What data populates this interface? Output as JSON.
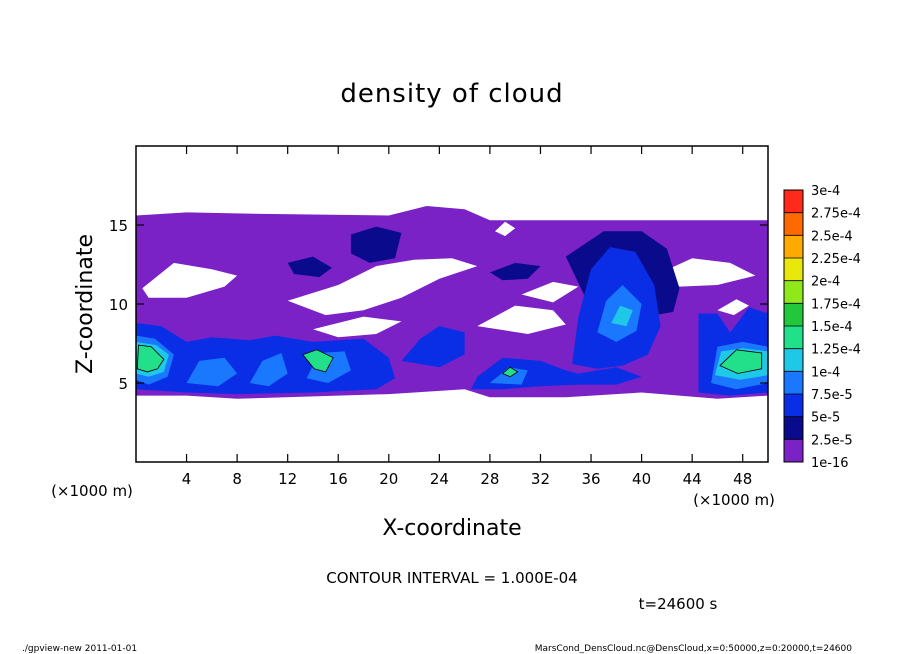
{
  "chart_data": {
    "type": "heatmap",
    "title": "density of cloud",
    "xlabel": "X-coordinate",
    "ylabel": "Z-coordinate",
    "x_unit_label": "(×1000 m)",
    "y_unit_label": "(×1000 m)",
    "xlim": [
      0,
      50
    ],
    "ylim": [
      0,
      20
    ],
    "x_ticks": [
      4,
      8,
      12,
      16,
      20,
      24,
      28,
      32,
      36,
      40,
      44,
      48
    ],
    "y_ticks": [
      5,
      10,
      15
    ],
    "contour_interval_text": "CONTOUR INTERVAL = 1.000E-04",
    "time_text": "t=24600 s",
    "colorbar": {
      "levels": [
        "1e-16",
        "2.5e-5",
        "5e-5",
        "7.5e-5",
        "1e-4",
        "1.25e-4",
        "1.5e-4",
        "1.75e-4",
        "2e-4",
        "2.25e-4",
        "2.5e-4",
        "2.75e-4",
        "3e-4"
      ],
      "colors": [
        "#7a22c6",
        "#0a0a8c",
        "#0a2ee6",
        "#1a78ff",
        "#20c8e8",
        "#22e08a",
        "#22c83a",
        "#8ee81a",
        "#e8e80a",
        "#ffaa00",
        "#ff6a00",
        "#ff2a1a",
        "#ff8a8a"
      ]
    },
    "grid": false,
    "regions": [
      {
        "name": "background-cloud",
        "level": "1e-16",
        "polygon": [
          [
            0,
            4.2
          ],
          [
            0,
            15.6
          ],
          [
            4,
            15.8
          ],
          [
            10,
            15.7
          ],
          [
            20,
            15.6
          ],
          [
            23,
            16.2
          ],
          [
            26,
            16
          ],
          [
            28,
            15.3
          ],
          [
            50,
            15.3
          ],
          [
            50,
            4.2
          ],
          [
            46,
            4
          ],
          [
            40,
            4.4
          ],
          [
            34,
            4.1
          ],
          [
            28,
            4.1
          ],
          [
            26,
            4.6
          ],
          [
            20,
            4.3
          ],
          [
            8,
            4
          ],
          [
            4,
            4.2
          ]
        ]
      },
      {
        "name": "clear-gap-1",
        "level": "none",
        "polygon": [
          [
            0.5,
            11
          ],
          [
            3,
            12.6
          ],
          [
            6,
            12.2
          ],
          [
            8,
            11.8
          ],
          [
            7,
            11.1
          ],
          [
            4,
            10.4
          ],
          [
            1,
            10.4
          ]
        ]
      },
      {
        "name": "clear-gap-2",
        "level": "none",
        "polygon": [
          [
            12,
            10.2
          ],
          [
            16,
            11.2
          ],
          [
            19,
            12.4
          ],
          [
            22,
            12.8
          ],
          [
            25,
            12.9
          ],
          [
            27,
            12.4
          ],
          [
            24,
            11.6
          ],
          [
            21,
            10.4
          ],
          [
            18,
            9.6
          ],
          [
            15,
            9.3
          ]
        ]
      },
      {
        "name": "clear-gap-3",
        "level": "none",
        "polygon": [
          [
            14,
            8.4
          ],
          [
            18,
            9.2
          ],
          [
            21,
            8.9
          ],
          [
            19,
            8.1
          ],
          [
            16,
            7.9
          ]
        ]
      },
      {
        "name": "clear-gap-4",
        "level": "none",
        "polygon": [
          [
            27,
            8.6
          ],
          [
            30,
            9.9
          ],
          [
            33,
            9.6
          ],
          [
            34,
            8.7
          ],
          [
            31,
            8.1
          ]
        ]
      },
      {
        "name": "clear-gap-5",
        "level": "none",
        "polygon": [
          [
            30.5,
            10.6
          ],
          [
            33,
            11.4
          ],
          [
            35,
            11.1
          ],
          [
            33,
            10.1
          ]
        ]
      },
      {
        "name": "clear-gap-6",
        "level": "none",
        "polygon": [
          [
            41,
            11.8
          ],
          [
            44,
            12.9
          ],
          [
            47,
            12.6
          ],
          [
            49,
            11.8
          ],
          [
            46,
            11.2
          ],
          [
            43,
            11.1
          ]
        ]
      },
      {
        "name": "clear-gap-7",
        "level": "none",
        "polygon": [
          [
            46,
            9.6
          ],
          [
            47.5,
            10.3
          ],
          [
            48.5,
            9.9
          ],
          [
            47.3,
            9.3
          ]
        ]
      },
      {
        "name": "clear-hole-top",
        "level": "none",
        "polygon": [
          [
            28.4,
            14.6
          ],
          [
            29.2,
            15.2
          ],
          [
            30,
            14.8
          ],
          [
            29.2,
            14.3
          ]
        ]
      },
      {
        "name": "dark-cloud-1",
        "level": "2.5e-5",
        "polygon": [
          [
            17,
            14.4
          ],
          [
            19,
            14.9
          ],
          [
            21,
            14.5
          ],
          [
            20.5,
            12.9
          ],
          [
            18.5,
            12.6
          ],
          [
            17,
            13.2
          ]
        ]
      },
      {
        "name": "dark-cloud-2",
        "level": "2.5e-5",
        "polygon": [
          [
            12,
            12.6
          ],
          [
            14,
            13
          ],
          [
            15.5,
            12.3
          ],
          [
            14.5,
            11.7
          ],
          [
            12.5,
            11.9
          ]
        ]
      },
      {
        "name": "dark-cloud-3",
        "level": "2.5e-5",
        "polygon": [
          [
            28,
            12
          ],
          [
            30,
            12.6
          ],
          [
            32,
            12.4
          ],
          [
            31,
            11.6
          ],
          [
            29,
            11.5
          ]
        ]
      },
      {
        "name": "dark-cloud-4",
        "level": "2.5e-5",
        "polygon": [
          [
            34,
            13
          ],
          [
            37,
            14.6
          ],
          [
            40,
            14.6
          ],
          [
            42,
            13.5
          ],
          [
            43,
            11
          ],
          [
            42.5,
            9.5
          ],
          [
            39,
            9
          ],
          [
            35.5,
            10.5
          ]
        ]
      },
      {
        "name": "low-band-1",
        "level": "5e-5",
        "polygon": [
          [
            0,
            4.6
          ],
          [
            0,
            8.8
          ],
          [
            2,
            8.6
          ],
          [
            4,
            7.6
          ],
          [
            6,
            7.9
          ],
          [
            9,
            7.7
          ],
          [
            11,
            8
          ],
          [
            14,
            7.6
          ],
          [
            18,
            7.8
          ],
          [
            20,
            6.6
          ],
          [
            20.5,
            5.3
          ],
          [
            19,
            4.6
          ],
          [
            14,
            4.4
          ],
          [
            8,
            4.3
          ],
          [
            4,
            4.4
          ]
        ]
      },
      {
        "name": "low-band-2",
        "level": "5e-5",
        "polygon": [
          [
            26.5,
            4.6
          ],
          [
            27,
            5.4
          ],
          [
            29,
            6.6
          ],
          [
            32,
            6.4
          ],
          [
            34,
            5.8
          ],
          [
            35,
            5.6
          ],
          [
            38,
            6
          ],
          [
            40,
            5.4
          ],
          [
            38,
            4.9
          ],
          [
            35,
            4.9
          ],
          [
            32,
            4.8
          ],
          [
            29,
            4.6
          ]
        ]
      },
      {
        "name": "right-column",
        "level": "5e-5",
        "polygon": [
          [
            34.5,
            6.2
          ],
          [
            35,
            9.2
          ],
          [
            36,
            12.2
          ],
          [
            37.5,
            13.6
          ],
          [
            39.5,
            13.3
          ],
          [
            41,
            11.2
          ],
          [
            41.5,
            8.6
          ],
          [
            40.5,
            6.8
          ],
          [
            38.5,
            6.1
          ],
          [
            36.5,
            5.9
          ]
        ]
      },
      {
        "name": "right-edge",
        "level": "5e-5",
        "polygon": [
          [
            44.5,
            4.4
          ],
          [
            44.5,
            9.4
          ],
          [
            46,
            9.4
          ],
          [
            47,
            8.2
          ],
          [
            48.5,
            9.8
          ],
          [
            50,
            9.4
          ],
          [
            50,
            4.4
          ],
          [
            47,
            4.2
          ]
        ]
      },
      {
        "name": "mid-patch",
        "level": "5e-5",
        "polygon": [
          [
            21,
            6.4
          ],
          [
            22.5,
            7.8
          ],
          [
            24,
            8.6
          ],
          [
            26,
            8.2
          ],
          [
            26,
            6.8
          ],
          [
            24,
            6
          ]
        ]
      },
      {
        "name": "light-1",
        "level": "7.5e-5",
        "polygon": [
          [
            0,
            5.2
          ],
          [
            0,
            8
          ],
          [
            1.5,
            7.8
          ],
          [
            3,
            6.8
          ],
          [
            2.5,
            5.4
          ],
          [
            1,
            4.9
          ]
        ]
      },
      {
        "name": "light-2",
        "level": "7.5e-5",
        "polygon": [
          [
            4,
            5
          ],
          [
            5,
            6.4
          ],
          [
            7,
            6.6
          ],
          [
            8,
            5.6
          ],
          [
            6.5,
            4.8
          ]
        ]
      },
      {
        "name": "light-3",
        "level": "7.5e-5",
        "polygon": [
          [
            9,
            5
          ],
          [
            10,
            6.4
          ],
          [
            11.5,
            6.9
          ],
          [
            12,
            5.6
          ],
          [
            10.5,
            4.8
          ]
        ]
      },
      {
        "name": "light-4",
        "level": "7.5e-5",
        "polygon": [
          [
            13.5,
            5.3
          ],
          [
            14.5,
            6.9
          ],
          [
            16.5,
            7
          ],
          [
            17,
            5.8
          ],
          [
            15.2,
            5
          ]
        ]
      },
      {
        "name": "light-5",
        "level": "7.5e-5",
        "polygon": [
          [
            28,
            5
          ],
          [
            29.5,
            6
          ],
          [
            31,
            5.8
          ],
          [
            30.5,
            4.9
          ]
        ]
      },
      {
        "name": "light-6",
        "level": "7.5e-5",
        "polygon": [
          [
            36.5,
            8.2
          ],
          [
            37.2,
            10.2
          ],
          [
            38.5,
            11.2
          ],
          [
            40,
            10
          ],
          [
            39.6,
            8.3
          ],
          [
            38,
            7.6
          ]
        ]
      },
      {
        "name": "light-7",
        "level": "7.5e-5",
        "polygon": [
          [
            45.5,
            5
          ],
          [
            46,
            7.3
          ],
          [
            48,
            7.6
          ],
          [
            50,
            7.3
          ],
          [
            50,
            5
          ],
          [
            47.5,
            4.6
          ]
        ]
      },
      {
        "name": "cyan-1",
        "level": "1e-4",
        "polygon": [
          [
            37.6,
            8.8
          ],
          [
            38.3,
            9.9
          ],
          [
            39.3,
            9.6
          ],
          [
            38.8,
            8.6
          ]
        ]
      },
      {
        "name": "cyan-2",
        "level": "1e-4",
        "polygon": [
          [
            0,
            5.6
          ],
          [
            0,
            7.6
          ],
          [
            1.6,
            7.4
          ],
          [
            2.6,
            6.8
          ],
          [
            2.2,
            5.7
          ],
          [
            1,
            5.4
          ]
        ]
      },
      {
        "name": "cyan-3",
        "level": "1e-4",
        "polygon": [
          [
            45.8,
            5.5
          ],
          [
            46.3,
            7
          ],
          [
            48,
            7.2
          ],
          [
            50,
            7
          ],
          [
            50,
            5.5
          ],
          [
            47.8,
            5.2
          ]
        ]
      },
      {
        "name": "green-1",
        "level": "1.25e-4",
        "polygon": [
          [
            0.1,
            5.9
          ],
          [
            0.2,
            7.4
          ],
          [
            1.2,
            7.3
          ],
          [
            2.2,
            6.5
          ],
          [
            1.7,
            5.9
          ],
          [
            0.9,
            5.7
          ]
        ]
      },
      {
        "name": "green-2",
        "level": "1.25e-4",
        "polygon": [
          [
            13.2,
            6.8
          ],
          [
            14.3,
            7.1
          ],
          [
            15.6,
            6.6
          ],
          [
            15,
            5.7
          ],
          [
            14.1,
            5.9
          ]
        ]
      },
      {
        "name": "green-3",
        "level": "1.25e-4",
        "polygon": [
          [
            46.2,
            6.1
          ],
          [
            47.5,
            7.1
          ],
          [
            49.5,
            6.9
          ],
          [
            49.5,
            5.9
          ],
          [
            47.6,
            5.6
          ]
        ]
      },
      {
        "name": "green-4",
        "level": "1.25e-4",
        "polygon": [
          [
            29,
            5.6
          ],
          [
            29.6,
            6
          ],
          [
            30.2,
            5.7
          ],
          [
            29.6,
            5.4
          ]
        ]
      }
    ]
  },
  "footer": {
    "left_text": "./gpview-new   2011-01-01",
    "right_text": "MarsCond_DensCloud.nc@DensCloud,x=0:50000,z=0:20000,t=24600"
  }
}
